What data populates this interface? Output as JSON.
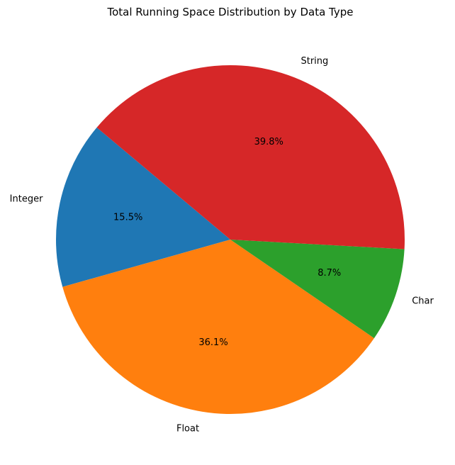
{
  "chart_data": {
    "type": "pie",
    "title": "Total Running Space Distribution by Data Type",
    "categories": [
      "Integer",
      "Float",
      "Char",
      "String"
    ],
    "values": [
      15.5,
      36.1,
      8.7,
      39.8
    ],
    "percent_labels": [
      "15.5%",
      "36.1%",
      "8.7%",
      "39.8%"
    ],
    "colors": [
      "#1f77b4",
      "#ff7f0e",
      "#2ca02c",
      "#d62728"
    ],
    "start_angle_deg": 140,
    "direction": "counterclockwise",
    "legend": "none"
  }
}
